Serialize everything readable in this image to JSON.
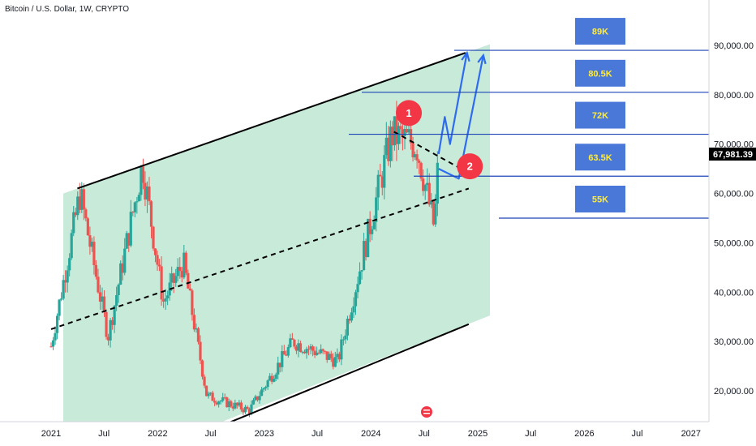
{
  "symbol_title": "Bitcoin / U.S. Dollar, 1W, CRYPTO",
  "colors": {
    "bull": "#26a69a",
    "bear": "#ef5350",
    "channel_fill": "#c8ead9",
    "target_box": "#4a78d8",
    "target_text": "#ffeb3b",
    "level_line": "#1e44b5",
    "projection_arrow": "#2e6bf0",
    "marker": "#f23645",
    "price_tag": "#000000"
  },
  "chart_data": {
    "type": "candlestick",
    "title": "Bitcoin / U.S. Dollar, 1W, CRYPTO",
    "x_tick_labels": [
      "2021",
      "Jul",
      "2022",
      "Jul",
      "2023",
      "Jul",
      "2024",
      "Jul",
      "2025",
      "Jul",
      "2026",
      "Jul",
      "2027"
    ],
    "y_tick_labels": [
      "20,000.00",
      "30,000.00",
      "40,000.00",
      "50,000.00",
      "60,000.00",
      "70,000.00",
      "80,000.00",
      "90,000.00"
    ],
    "y_ticks": [
      20000,
      30000,
      40000,
      50000,
      60000,
      70000,
      80000,
      90000
    ],
    "current_price": 67981.39,
    "current_price_label": "67,981.39",
    "key_points": [
      {
        "date": "2021-01-01",
        "price": 29000
      },
      {
        "date": "2021-04-10",
        "price": 60000
      },
      {
        "date": "2021-07-15",
        "price": 31000
      },
      {
        "date": "2021-11-10",
        "price": 66000
      },
      {
        "date": "2022-01-20",
        "price": 38000
      },
      {
        "date": "2022-03-30",
        "price": 46000
      },
      {
        "date": "2022-06-18",
        "price": 19000
      },
      {
        "date": "2022-11-10",
        "price": 16000
      },
      {
        "date": "2023-04-10",
        "price": 30000
      },
      {
        "date": "2023-09-10",
        "price": 26000
      },
      {
        "date": "2024-03-12",
        "price": 72000
      },
      {
        "date": "2024-06-05",
        "price": 70000
      },
      {
        "date": "2024-08-05",
        "price": 53000
      },
      {
        "date": "2024-08-20",
        "price": 68000
      }
    ],
    "annotations": {
      "channel_upper": [
        {
          "date": "2021-04-01",
          "price": 61000
        },
        {
          "date": "2024-11-20",
          "price": 88500
        }
      ],
      "channel_lower": [
        {
          "date": "2022-08-10",
          "price": 13000
        },
        {
          "date": "2024-12-01",
          "price": 33500
        }
      ],
      "channel_mid": [
        {
          "date": "2021-01-01",
          "price": 32500
        },
        {
          "date": "2024-12-01",
          "price": 61000
        }
      ],
      "descending_trendline": [
        {
          "date": "2024-03-20",
          "price": 72500
        },
        {
          "date": "2024-11-05",
          "price": 65000
        }
      ],
      "projection_path": [
        {
          "date": "2024-08-20",
          "price": 68000
        },
        {
          "date": "2024-09-10",
          "price": 75500
        },
        {
          "date": "2024-09-28",
          "price": 70000
        },
        {
          "date": "2024-11-25",
          "price": 88500
        }
      ],
      "projection_path_2": [
        {
          "date": "2024-08-20",
          "price": 65000
        },
        {
          "date": "2024-10-28",
          "price": 63000
        },
        {
          "date": "2025-01-20",
          "price": 88000
        }
      ],
      "targets": [
        {
          "label": "89K",
          "price": 89000
        },
        {
          "label": "80.5K",
          "price": 80500
        },
        {
          "label": "72K",
          "price": 72000
        },
        {
          "label": "63.5K",
          "price": 63500
        },
        {
          "label": "55K",
          "price": 55000
        }
      ],
      "markers": [
        {
          "label": "1",
          "date": "2024-05-10",
          "price": 76300
        },
        {
          "label": "2",
          "date": "2024-12-05",
          "price": 65500
        }
      ]
    }
  }
}
